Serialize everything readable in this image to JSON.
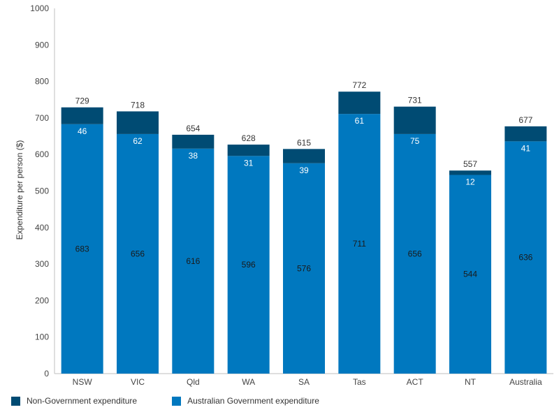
{
  "chart_data": {
    "type": "bar",
    "stacked": true,
    "ylabel": "Expenditure per person ($)",
    "xlabel": "",
    "ylim": [
      0,
      1000
    ],
    "yticks": [
      0,
      100,
      200,
      300,
      400,
      500,
      600,
      700,
      800,
      900,
      1000
    ],
    "categories": [
      "NSW",
      "VIC",
      "Qld",
      "WA",
      "SA",
      "Tas",
      "ACT",
      "NT",
      "Australia"
    ],
    "series": [
      {
        "name": "Australian Government expenditure",
        "color": "#0078bf",
        "values": [
          683,
          656,
          616,
          596,
          576,
          711,
          656,
          544,
          636
        ]
      },
      {
        "name": "Non-Government expenditure",
        "color": "#004b73",
        "values": [
          46,
          62,
          38,
          31,
          39,
          61,
          75,
          12,
          41
        ]
      }
    ],
    "totals": [
      729,
      718,
      654,
      628,
      615,
      772,
      731,
      557,
      677
    ],
    "legend": [
      {
        "label": "Non-Government expenditure",
        "color": "#004b73"
      },
      {
        "label": "Australian Government expenditure",
        "color": "#0078bf"
      }
    ],
    "grid": false
  }
}
